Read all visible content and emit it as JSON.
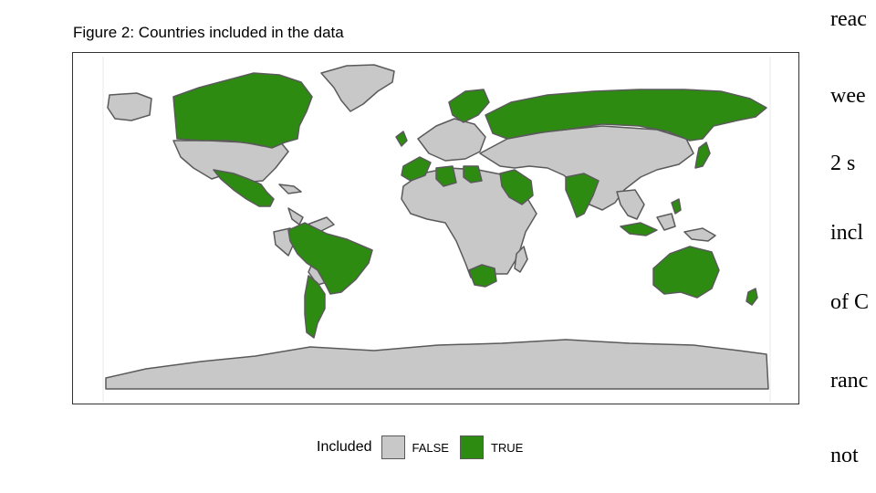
{
  "figure": {
    "title": "Figure 2: Countries included in the data"
  },
  "legend": {
    "title": "Included",
    "items": [
      {
        "label": "FALSE",
        "color": "#c8c8c8"
      },
      {
        "label": "TRUE",
        "color": "#2e8b12"
      }
    ]
  },
  "map": {
    "projection": "equirectangular",
    "border_color": "#5a5a5a",
    "included_countries": [
      "Canada",
      "Mexico",
      "Guatemala",
      "Colombia",
      "Brazil",
      "Argentina",
      "Chile",
      "Morocco",
      "Libya",
      "Egypt",
      "Saudi Arabia",
      "South Africa",
      "Russia",
      "United Kingdom",
      "Germany",
      "Sweden",
      "Norway",
      "Finland",
      "Italy",
      "Spain",
      "India",
      "Japan",
      "Philippines",
      "Indonesia",
      "Australia",
      "New Zealand"
    ]
  },
  "side_text": [
    "reac",
    "wee",
    "2  s",
    "incl",
    "of C",
    "ranc",
    "not"
  ]
}
